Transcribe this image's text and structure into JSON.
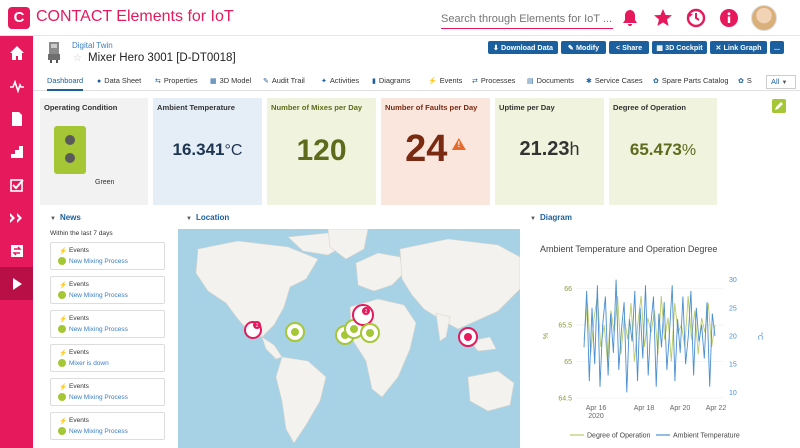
{
  "app": {
    "title": "CONTACT Elements for IoT",
    "search_placeholder": "Search through Elements for IoT ...",
    "logo_letter": "C"
  },
  "colors": {
    "brand": "#e5195c",
    "accent": "#1b5f9e",
    "green": "#a5c736"
  },
  "header": {
    "breadcrumb": "Digital Twin",
    "title": "Mixer Hero 3001 [D-DT0018]",
    "actions": [
      "Download Data",
      "Modify",
      "Share",
      "3D Cockpit",
      "Link Graph",
      "..."
    ]
  },
  "tabs": [
    {
      "label": "Dashboard",
      "icon": "",
      "active": true
    },
    {
      "label": "Data Sheet",
      "icon": "●"
    },
    {
      "label": "Properties",
      "icon": "⇆"
    },
    {
      "label": "3D Model",
      "icon": "▦"
    },
    {
      "label": "Audit Trail",
      "icon": "✎"
    },
    {
      "label": "Activities",
      "icon": "✦"
    },
    {
      "label": "Diagrams",
      "icon": "▮"
    },
    {
      "label": "Events",
      "icon": "⚡"
    },
    {
      "label": "Processes",
      "icon": "⇄"
    },
    {
      "label": "Documents",
      "icon": "▤"
    },
    {
      "label": "Service Cases",
      "icon": "✱"
    },
    {
      "label": "Spare Parts Catalog",
      "icon": "✿"
    },
    {
      "label": "S",
      "icon": "✿"
    }
  ],
  "tab_all_label": "All",
  "kpis": {
    "condition": {
      "label": "Operating Condition",
      "status": "Green"
    },
    "temperature": {
      "label": "Ambient Temperature",
      "value": "16.341",
      "unit": "°C"
    },
    "mixes": {
      "label": "Number of Mixes per Day",
      "value": "120"
    },
    "faults": {
      "label": "Number of Faults per Day",
      "value": "24",
      "warn": "!"
    },
    "uptime": {
      "label": "Uptime per Day",
      "value": "21.23",
      "unit": "h"
    },
    "degree": {
      "label": "Degree of Operation",
      "value": "65.473",
      "unit": "%"
    }
  },
  "sections": {
    "news": "News",
    "location": "Location",
    "diagram": "Diagram"
  },
  "news": {
    "subtitle": "Within the last 7 days",
    "items": [
      {
        "type": "Events",
        "text": "New Mixing Process"
      },
      {
        "type": "Events",
        "text": "New Mixing Process"
      },
      {
        "type": "Events",
        "text": "New Mixing Process"
      },
      {
        "type": "Events",
        "text": "Mixer is down"
      },
      {
        "type": "Events",
        "text": "New Mixing Process"
      },
      {
        "type": "Events",
        "text": "New Mixing Process"
      }
    ]
  },
  "map": {
    "cluster_counts": [
      "2",
      "2"
    ]
  },
  "chart_data": {
    "type": "line",
    "title": "Ambient Temperature and Operation Degree",
    "x_ticks": [
      "Apr 16\n2020",
      "Apr 18",
      "Apr 20",
      "Apr 22"
    ],
    "x_range": [
      "2020-04-15",
      "2020-04-22"
    ],
    "y_left": {
      "label": "%",
      "ticks": [
        64.5,
        65,
        65.5,
        66
      ],
      "range": [
        64.5,
        66.2
      ]
    },
    "y_right": {
      "label": "°C",
      "ticks": [
        10,
        15,
        20,
        25,
        30
      ],
      "range": [
        9,
        31
      ]
    },
    "series": [
      {
        "name": "Degree of Operation",
        "axis": "left",
        "color": "#b8cc6a",
        "values": [
          65.3,
          65.8,
          65.1,
          65.6,
          65.9,
          65.2,
          65.5,
          65.0,
          65.7,
          65.4,
          65.9,
          65.1,
          65.6,
          65.3,
          65.8,
          65.0,
          65.5,
          65.9,
          65.2,
          65.6,
          65.4,
          65.7,
          65.1,
          65.9,
          65.3,
          65.6,
          65.0,
          65.8,
          65.4,
          65.5,
          65.2,
          65.9,
          65.3,
          65.7,
          65.1,
          65.6,
          65.4,
          65.8,
          65.2,
          65.5
        ]
      },
      {
        "name": "Ambient Temperature",
        "axis": "right",
        "color": "#4a8fd1",
        "values": [
          18,
          28,
          12,
          25,
          15,
          29,
          11,
          22,
          27,
          13,
          24,
          17,
          30,
          14,
          21,
          26,
          10,
          23,
          19,
          28,
          12,
          25,
          16,
          29,
          13,
          22,
          27,
          11,
          24,
          18,
          26,
          14,
          21,
          29,
          12,
          23,
          17,
          27,
          15,
          20,
          28,
          13,
          25,
          19,
          22,
          16,
          26,
          11,
          24,
          20
        ]
      }
    ],
    "legend": "bottom",
    "grid": true
  }
}
